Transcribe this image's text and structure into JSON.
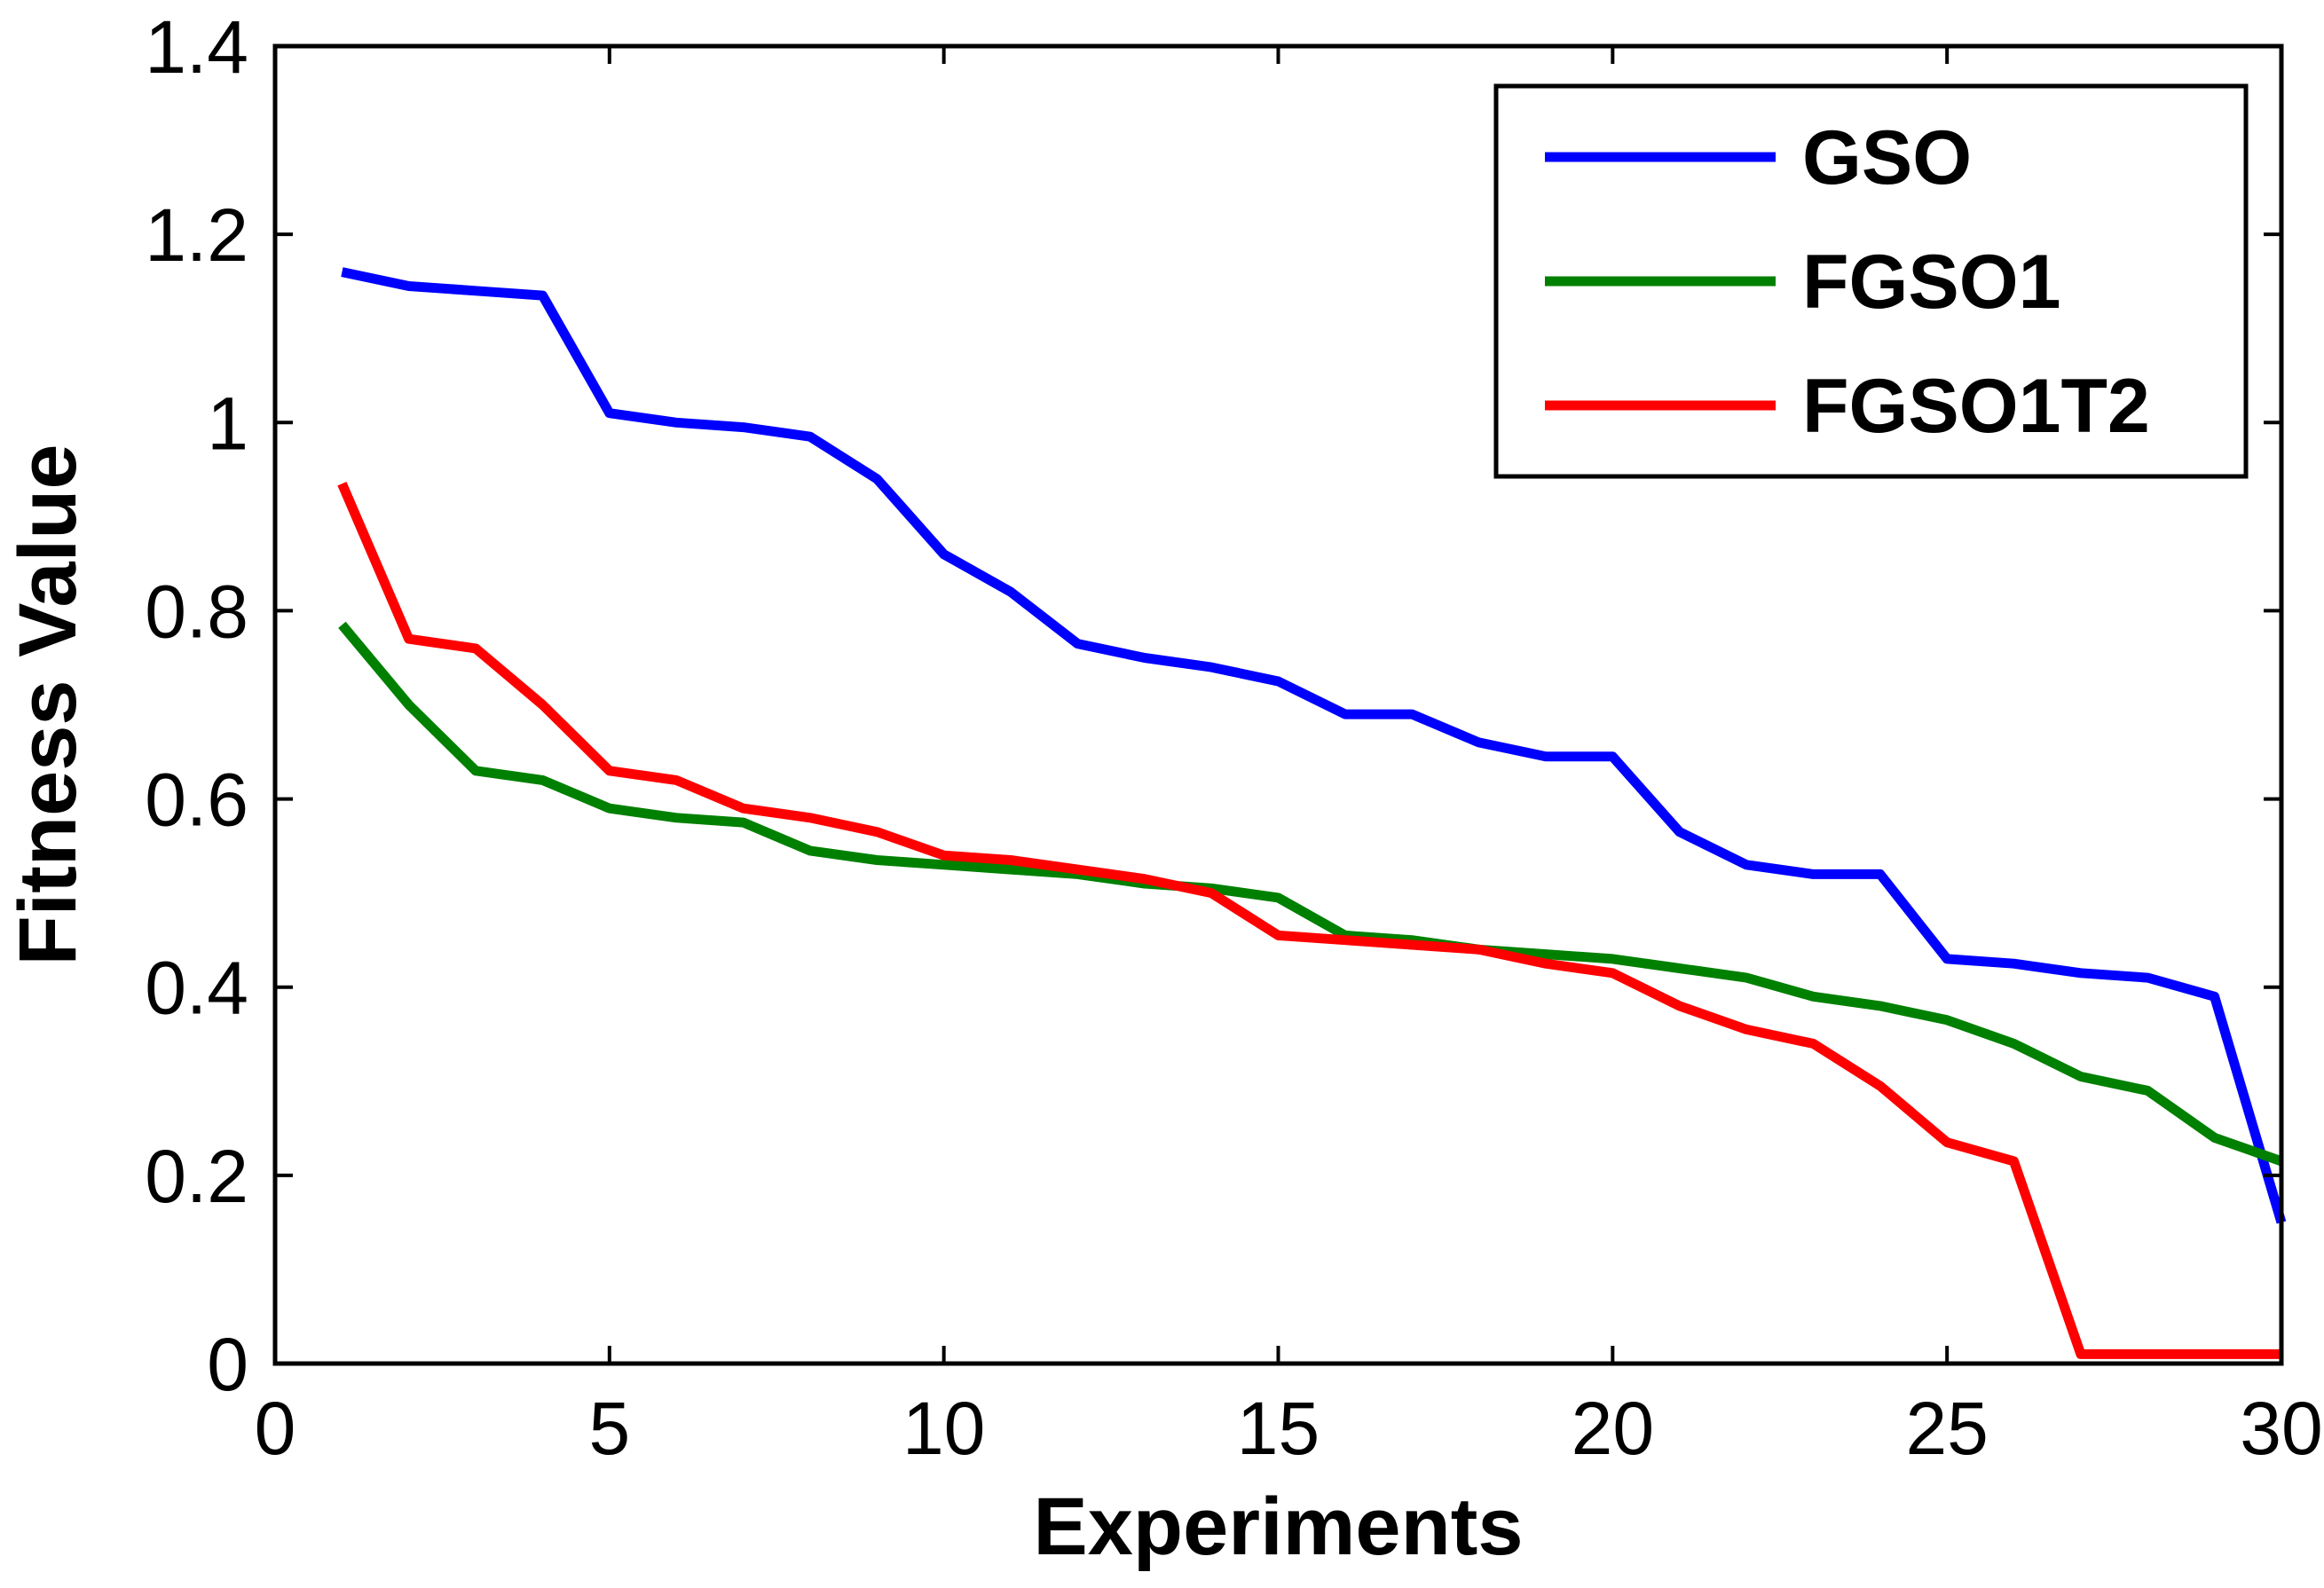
{
  "chart_data": {
    "type": "line",
    "title": "",
    "xlabel": "Experiments",
    "ylabel": "Fitness Value",
    "xlim": [
      0,
      30
    ],
    "ylim": [
      0,
      1.4
    ],
    "xticks": [
      0,
      5,
      10,
      15,
      20,
      25,
      30
    ],
    "xtick_labels": [
      "0",
      "5",
      "10",
      "15",
      "20",
      "25",
      "30"
    ],
    "yticks": [
      0,
      0.2,
      0.4,
      0.6,
      0.8,
      1.0,
      1.2,
      1.4
    ],
    "ytick_labels": [
      "0",
      "0.2",
      "0.4",
      "0.6",
      "0.8",
      "1",
      "1.2",
      "1.4"
    ],
    "grid": false,
    "legend_position": "top-right",
    "x": [
      1,
      2,
      3,
      4,
      5,
      6,
      7,
      8,
      9,
      10,
      11,
      12,
      13,
      14,
      15,
      16,
      17,
      18,
      19,
      20,
      21,
      22,
      23,
      24,
      25,
      26,
      27,
      28,
      29,
      30
    ],
    "series": [
      {
        "name": "GSO",
        "color": "#0000ff",
        "values": [
          1.16,
          1.145,
          1.14,
          1.135,
          1.01,
          1.0,
          0.995,
          0.985,
          0.94,
          0.86,
          0.82,
          0.765,
          0.75,
          0.74,
          0.725,
          0.69,
          0.69,
          0.66,
          0.645,
          0.645,
          0.565,
          0.53,
          0.52,
          0.52,
          0.43,
          0.425,
          0.415,
          0.41,
          0.39,
          0.15
        ]
      },
      {
        "name": "FGSO1",
        "color": "#008000",
        "values": [
          0.785,
          0.7,
          0.63,
          0.62,
          0.59,
          0.58,
          0.575,
          0.545,
          0.535,
          0.53,
          0.525,
          0.52,
          0.51,
          0.505,
          0.495,
          0.455,
          0.45,
          0.44,
          0.435,
          0.43,
          0.42,
          0.41,
          0.39,
          0.38,
          0.365,
          0.34,
          0.305,
          0.29,
          0.24,
          0.215
        ]
      },
      {
        "name": "FGSO1T2",
        "color": "#ff0000",
        "values": [
          0.935,
          0.77,
          0.76,
          0.7,
          0.63,
          0.62,
          0.59,
          0.58,
          0.565,
          0.54,
          0.535,
          0.525,
          0.515,
          0.5,
          0.455,
          0.45,
          0.445,
          0.44,
          0.425,
          0.415,
          0.38,
          0.355,
          0.34,
          0.295,
          0.235,
          0.215,
          0.01,
          0.01,
          0.01,
          0.01
        ]
      }
    ]
  }
}
